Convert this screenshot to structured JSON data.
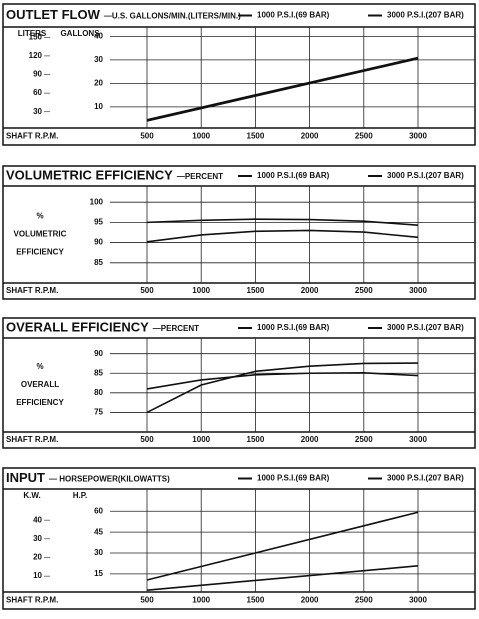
{
  "chart_data": [
    {
      "type": "line",
      "title": "OUTLET FLOW",
      "subtitle": "—U.S. GALLONS/MIN.(LITERS/MIN.)",
      "x_label": "SHAFT R.P.M.",
      "y_label": "GALLONS",
      "y2_label": "LITERS",
      "x": [
        500,
        3000
      ],
      "series": [
        {
          "name": "1000 P.S.I.(69 BAR)",
          "color": "#111111",
          "values": [
            4.5,
            31
          ]
        },
        {
          "name": "3000 P.S.I.(207 BAR)",
          "color": "#111111",
          "values": [
            4,
            30.5
          ]
        }
      ],
      "xlim": [
        225,
        3515
      ],
      "xticks": [
        500,
        1000,
        1500,
        2000,
        2500,
        3000
      ],
      "ylim": [
        1,
        44
      ],
      "yticks": [
        10,
        20,
        30,
        40
      ],
      "y2lim": [
        3.8,
        166.6
      ],
      "y2ticks": [
        30,
        60,
        90,
        120,
        150
      ],
      "grid": true
    },
    {
      "type": "line",
      "title": "VOLUMETRIC EFFICIENCY",
      "subtitle": "—PERCENT",
      "x_label": "SHAFT R.P.M.",
      "y_label": [
        "%",
        "VOLUMETRIC",
        "EFFICIENCY"
      ],
      "x": [
        500,
        1000,
        1500,
        2000,
        2500,
        3000
      ],
      "series": [
        {
          "name": "1000 P.S.I.(69 BAR)",
          "color": "#111111",
          "values": [
            95,
            95.5,
            95.8,
            95.7,
            95.3,
            94.3
          ]
        },
        {
          "name": "3000 P.S.I.(207 BAR)",
          "color": "#111111",
          "values": [
            90.2,
            91.9,
            92.8,
            93,
            92.6,
            91.3
          ]
        }
      ],
      "xlim": [
        225,
        3515
      ],
      "xticks": [
        500,
        1000,
        1500,
        2000,
        2500,
        3000
      ],
      "ylim": [
        80,
        104
      ],
      "yticks": [
        85,
        90,
        95,
        100
      ],
      "grid": true
    },
    {
      "type": "line",
      "title": "OVERALL EFFICIENCY",
      "subtitle": "—PERCENT",
      "x_label": "SHAFT R.P.M.",
      "y_label": [
        "%",
        "OVERALL",
        "EFFICIENCY"
      ],
      "x": [
        500,
        1000,
        1500,
        2000,
        2500,
        3000
      ],
      "series": [
        {
          "name": "1000 P.S.I.(69 BAR)",
          "color": "#111111",
          "values": [
            81,
            83.3,
            84.6,
            85,
            85.1,
            84.4
          ]
        },
        {
          "name": "3000 P.S.I.(207 BAR)",
          "color": "#111111",
          "values": [
            75,
            82,
            85.5,
            86.8,
            87.5,
            87.6
          ]
        }
      ],
      "xlim": [
        225,
        3515
      ],
      "xticks": [
        500,
        1000,
        1500,
        2000,
        2500,
        3000
      ],
      "ylim": [
        70,
        94
      ],
      "yticks": [
        75,
        80,
        85,
        90
      ],
      "grid": true
    },
    {
      "type": "line",
      "title": "INPUT",
      "subtitle": "— HORSEPOWER(KILOWATTS)",
      "x_label": "SHAFT R.P.M.",
      "y_label": "H.P.",
      "y2_label": "K.W.",
      "x": [
        500,
        3000
      ],
      "series": [
        {
          "name": "1000 P.S.I.(69 BAR)",
          "color": "#111111",
          "values": [
            3.3,
            20.8
          ]
        },
        {
          "name": "3000 P.S.I.(207 BAR)",
          "color": "#111111",
          "values": [
            10.6,
            59.3
          ]
        }
      ],
      "xlim": [
        225,
        3515
      ],
      "xticks": [
        500,
        1000,
        1500,
        2000,
        2500,
        3000
      ],
      "ylim": [
        2,
        76
      ],
      "yticks": [
        15,
        30,
        45,
        60
      ],
      "y2lim": [
        1.5,
        56.7
      ],
      "y2ticks": [
        10,
        20,
        30,
        40
      ],
      "grid": true
    }
  ]
}
